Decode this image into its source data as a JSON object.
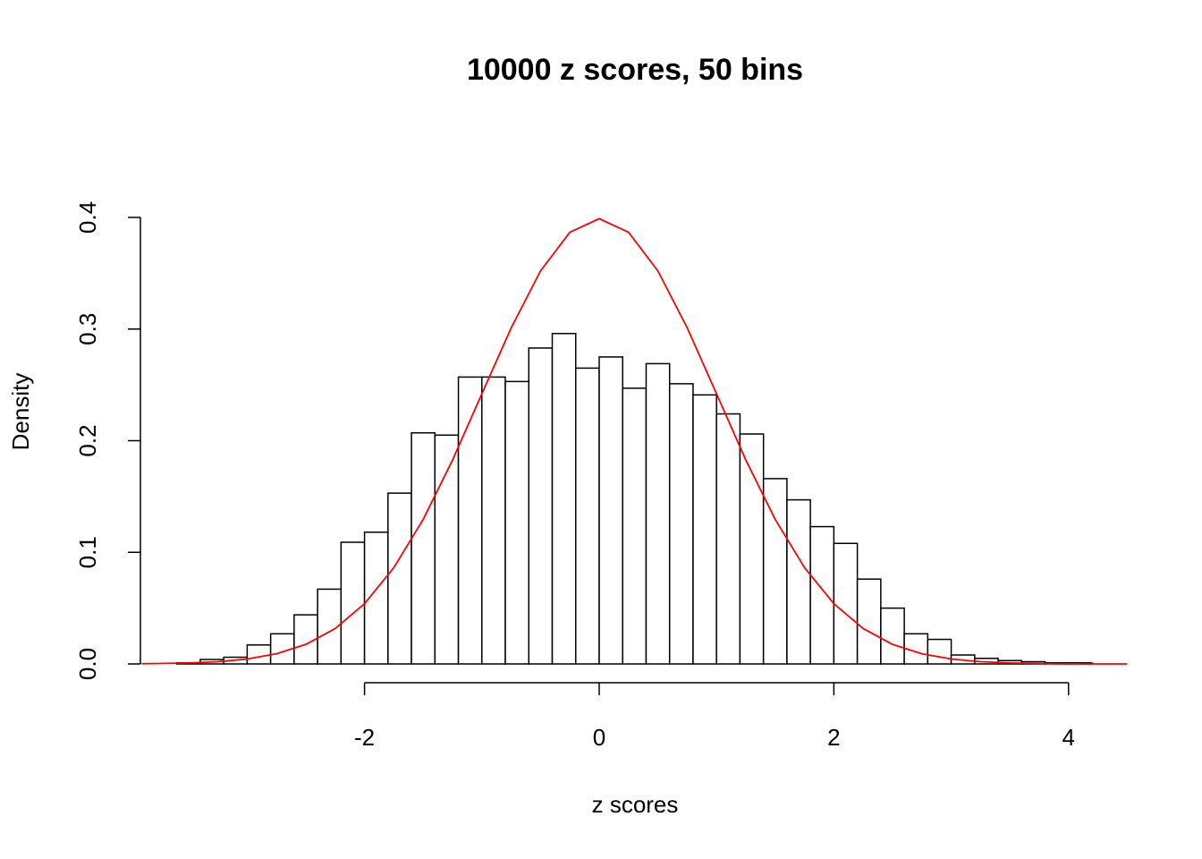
{
  "chart_data": {
    "type": "histogram",
    "title": "10000 z scores, 50 bins",
    "x_label": "z scores",
    "y_label": "Density",
    "bins": [
      -3.6,
      -3.4,
      -3.2,
      -3.0,
      -2.8,
      -2.6,
      -2.4,
      -2.2,
      -2.0,
      -1.8,
      -1.6,
      -1.4,
      -1.2,
      -1.0,
      -0.8,
      -0.6,
      -0.4,
      -0.2,
      0,
      0.2,
      0.4,
      0.6,
      0.8,
      1.0,
      1.2,
      1.4,
      1.6,
      1.8,
      2.0,
      2.2,
      2.4,
      2.6,
      2.8,
      3.0,
      3.2,
      3.4,
      3.6,
      3.8,
      4.0,
      4.2
    ],
    "values": [
      0.001,
      0.004,
      0.006,
      0.017,
      0.027,
      0.044,
      0.067,
      0.109,
      0.118,
      0.153,
      0.207,
      0.205,
      0.257,
      0.257,
      0.253,
      0.283,
      0.296,
      0.265,
      0.275,
      0.247,
      0.269,
      0.251,
      0.241,
      0.224,
      0.206,
      0.166,
      0.147,
      0.123,
      0.108,
      0.076,
      0.05,
      0.027,
      0.022,
      0.008,
      0.005,
      0.003,
      0.002,
      0.001,
      0.001
    ],
    "color": "#ffffff",
    "edge_color": "#000000",
    "curve": {
      "color": "#ff0000",
      "x": [
        -3.9,
        -3.75,
        -3.5,
        -3.25,
        -3.0,
        -2.75,
        -2.5,
        -2.25,
        -2.0,
        -1.75,
        -1.5,
        -1.25,
        -1.0,
        -0.75,
        -0.5,
        -0.25,
        0,
        0.25,
        0.5,
        0.75,
        1.0,
        1.25,
        1.5,
        1.75,
        2.0,
        2.25,
        2.5,
        2.75,
        3.0,
        3.25,
        3.5,
        3.75,
        4.0,
        4.25,
        4.5
      ],
      "y": [
        0.0002,
        0.0004,
        0.0009,
        0.002,
        0.0044,
        0.0091,
        0.0175,
        0.0317,
        0.054,
        0.0863,
        0.1295,
        0.1826,
        0.242,
        0.3011,
        0.3521,
        0.3867,
        0.3989,
        0.3867,
        0.3521,
        0.3011,
        0.242,
        0.1826,
        0.1295,
        0.0863,
        0.054,
        0.0317,
        0.0175,
        0.0091,
        0.0044,
        0.002,
        0.0009,
        0.0004,
        0.0001,
        0.0,
        0.0
      ]
    },
    "xlim": [
      -3.91,
      4.52
    ],
    "ylim": [
      0,
      0.4
    ],
    "xticks": [
      -2,
      0,
      2,
      4
    ],
    "yticks": [
      {
        "value": 0,
        "label": "0.0"
      },
      0.1,
      0.2,
      0.3,
      0.4
    ]
  }
}
